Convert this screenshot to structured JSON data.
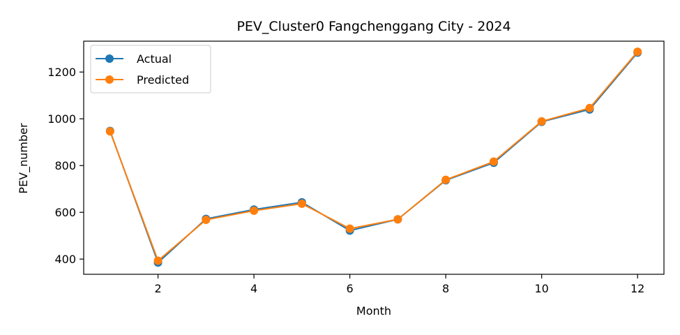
{
  "chart_data": {
    "type": "line",
    "title": "PEV_Cluster0 Fangchenggang City - 2024",
    "xlabel": "Month",
    "ylabel": "PEV_number",
    "x": [
      1,
      2,
      3,
      4,
      5,
      6,
      7,
      8,
      9,
      10,
      11,
      12
    ],
    "xlim": [
      0.45,
      12.55
    ],
    "ylim": [
      335,
      1332
    ],
    "xticks": [
      2,
      4,
      6,
      8,
      10,
      12
    ],
    "yticks": [
      400,
      600,
      800,
      1000,
      1200
    ],
    "grid": false,
    "legend_position": "top-left",
    "series": [
      {
        "name": "Actual",
        "color": "#1f77b4",
        "values": [
          948,
          385,
          572,
          612,
          643,
          522,
          570,
          737,
          812,
          987,
          1040,
          1283
        ]
      },
      {
        "name": "Predicted",
        "color": "#ff7f0e",
        "values": [
          946,
          393,
          568,
          607,
          637,
          530,
          570,
          739,
          817,
          989,
          1046,
          1287
        ]
      }
    ]
  }
}
